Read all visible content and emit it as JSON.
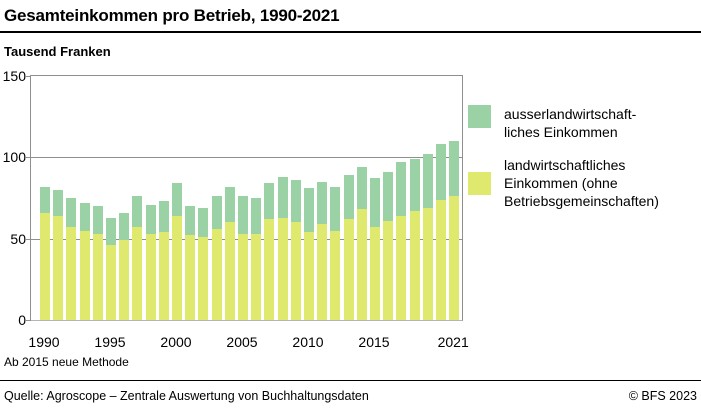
{
  "header": {
    "title": "Gesamteinkommen pro Betrieb, 1990-2021"
  },
  "subtitle": "Tausend Franken",
  "legend": {
    "items": [
      {
        "name": "ausserlandwirtschaftliches Einkommen",
        "swatch_color": "#9ad2a6",
        "lines": [
          "ausserlandwirtschaft-",
          "liches Einkommen"
        ]
      },
      {
        "name": "landwirtschaftliches Einkommen (ohne Betriebsgemeinschaften)",
        "swatch_color": "#dfe96d",
        "lines": [
          "landwirtschaftliches",
          "Einkommen (ohne",
          "Betriebsgemeinschaften)"
        ]
      }
    ]
  },
  "footnote": "Ab 2015 neue Methode",
  "footer": {
    "source": "Quelle: Agroscope – Zentrale Auswertung von Buchhaltungsdaten",
    "copyright": "© BFS 2023"
  },
  "chart_data": {
    "type": "bar",
    "stacked": true,
    "title": "Gesamteinkommen pro Betrieb, 1990-2021",
    "ylabel": "Tausend Franken",
    "xlabel": "",
    "ylim": [
      0,
      150
    ],
    "yticks": [
      0,
      50,
      100,
      150
    ],
    "xticks": [
      1990,
      1995,
      2000,
      2005,
      2010,
      2015,
      2021
    ],
    "grid": "horizontal",
    "legend_position": "right",
    "x": [
      1990,
      1991,
      1992,
      1993,
      1994,
      1995,
      1996,
      1997,
      1998,
      1999,
      2000,
      2001,
      2002,
      2003,
      2004,
      2005,
      2006,
      2007,
      2008,
      2009,
      2010,
      2011,
      2012,
      2013,
      2014,
      2015,
      2016,
      2017,
      2018,
      2019,
      2020,
      2021
    ],
    "series": [
      {
        "name": "landwirtschaftliches Einkommen (ohne Betriebsgemeinschaften)",
        "color": "#dfe96d",
        "values": [
          66,
          64,
          57,
          55,
          53,
          46,
          49,
          57,
          53,
          54,
          64,
          52,
          51,
          56,
          60,
          53,
          53,
          62,
          63,
          60,
          54,
          59,
          55,
          62,
          68,
          57,
          61,
          64,
          67,
          69,
          74,
          76
        ]
      },
      {
        "name": "ausserlandwirtschaftliches Einkommen",
        "color": "#9ad2a6",
        "values": [
          16,
          16,
          18,
          17,
          17,
          17,
          17,
          19,
          18,
          19,
          20,
          18,
          18,
          20,
          22,
          23,
          22,
          22,
          25,
          26,
          27,
          26,
          27,
          27,
          26,
          30,
          30,
          33,
          32,
          33,
          34,
          34
        ]
      }
    ]
  }
}
